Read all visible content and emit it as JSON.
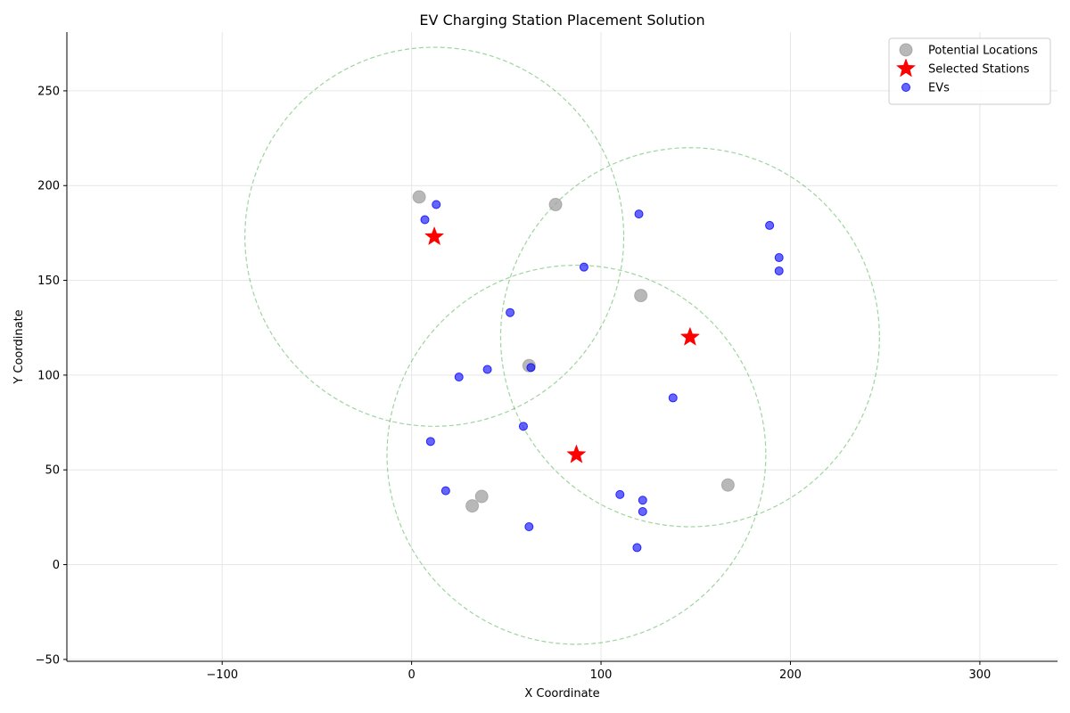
{
  "chart_data": {
    "type": "scatter",
    "title": "EV Charging Station Placement Solution",
    "xlabel": "X Coordinate",
    "ylabel": "Y Coordinate",
    "xlim": [
      -182,
      341
    ],
    "ylim": [
      -51,
      281
    ],
    "xticks": [
      -100,
      0,
      100,
      200,
      300
    ],
    "yticks": [
      -50,
      0,
      50,
      100,
      150,
      200,
      250
    ],
    "grid": true,
    "legend_position": "top-right",
    "coverage_radius": 100,
    "colors": {
      "potential": "#a0a0a0",
      "selected": "#ff0000",
      "ev": "#0000ff",
      "coverage": "#2ca02c"
    },
    "series": [
      {
        "name": "Potential Locations",
        "marker": "circle-large",
        "points": [
          [
            4,
            194
          ],
          [
            76,
            190
          ],
          [
            121,
            142
          ],
          [
            62,
            105
          ],
          [
            37,
            36
          ],
          [
            32,
            31
          ],
          [
            167,
            42
          ]
        ]
      },
      {
        "name": "Selected Stations",
        "marker": "star",
        "points": [
          [
            12,
            173
          ],
          [
            147,
            120
          ],
          [
            87,
            58
          ]
        ]
      },
      {
        "name": "EVs",
        "marker": "circle-small",
        "points": [
          [
            13,
            190
          ],
          [
            7,
            182
          ],
          [
            120,
            185
          ],
          [
            189,
            179
          ],
          [
            194,
            162
          ],
          [
            194,
            155
          ],
          [
            91,
            157
          ],
          [
            52,
            133
          ],
          [
            63,
            104
          ],
          [
            40,
            103
          ],
          [
            25,
            99
          ],
          [
            138,
            88
          ],
          [
            59,
            73
          ],
          [
            10,
            65
          ],
          [
            18,
            39
          ],
          [
            110,
            37
          ],
          [
            122,
            34
          ],
          [
            122,
            28
          ],
          [
            62,
            20
          ],
          [
            119,
            9
          ]
        ]
      }
    ]
  }
}
